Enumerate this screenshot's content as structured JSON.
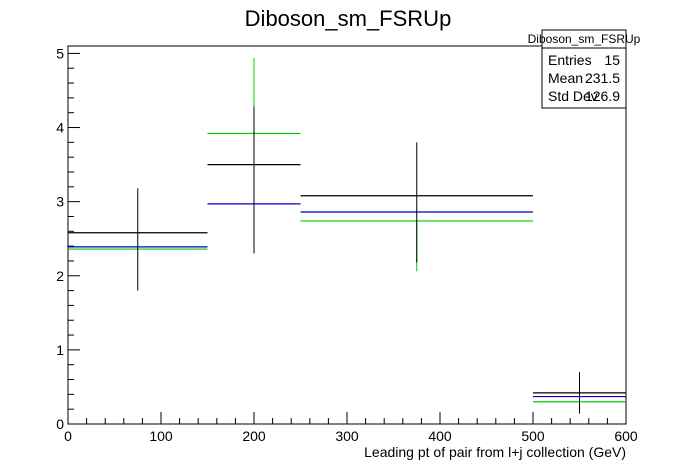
{
  "chart_data": {
    "type": "histogram",
    "title": "Diboson_sm_FSRUp",
    "xlabel": "Leading pt of pair from l+j collection (GeV)",
    "ylabel": "",
    "xlim": [
      0,
      600
    ],
    "ylim": [
      0,
      5.1
    ],
    "x_ticks": [
      "0",
      "100",
      "200",
      "300",
      "400",
      "500",
      "600"
    ],
    "y_ticks": [
      "0",
      "1",
      "2",
      "3",
      "4",
      "5"
    ],
    "bins": [
      {
        "low": 0,
        "high": 150
      },
      {
        "low": 150,
        "high": 250
      },
      {
        "low": 250,
        "high": 500
      },
      {
        "low": 500,
        "high": 600
      }
    ],
    "series": [
      {
        "color": "#000000",
        "values": [
          2.58,
          3.5,
          3.08,
          0.42
        ],
        "errors_up": [
          0.6,
          0.78,
          0.72,
          0.28
        ],
        "errors_down": [
          0.78,
          1.2,
          0.9,
          0.28
        ]
      },
      {
        "color": "#0000cc",
        "values": [
          2.39,
          2.97,
          2.86,
          0.37
        ],
        "errors_up": [
          0.0,
          0.0,
          0.0,
          0.0
        ],
        "errors_down": [
          0.0,
          0.0,
          0.0,
          0.0
        ]
      },
      {
        "color": "#00cc00",
        "values": [
          2.36,
          3.92,
          2.74,
          0.3
        ],
        "errors_up": [
          0.0,
          1.02,
          0.0,
          0.0
        ],
        "errors_down": [
          0.0,
          0.0,
          0.68,
          0.0
        ]
      }
    ],
    "stats_box": {
      "title": "Diboson_sm_FSRUp",
      "rows": [
        {
          "label": "Entries",
          "value": "15"
        },
        {
          "label": "Mean",
          "value": "231.5"
        },
        {
          "label": "Std Dev",
          "value": "126.9"
        }
      ]
    }
  }
}
